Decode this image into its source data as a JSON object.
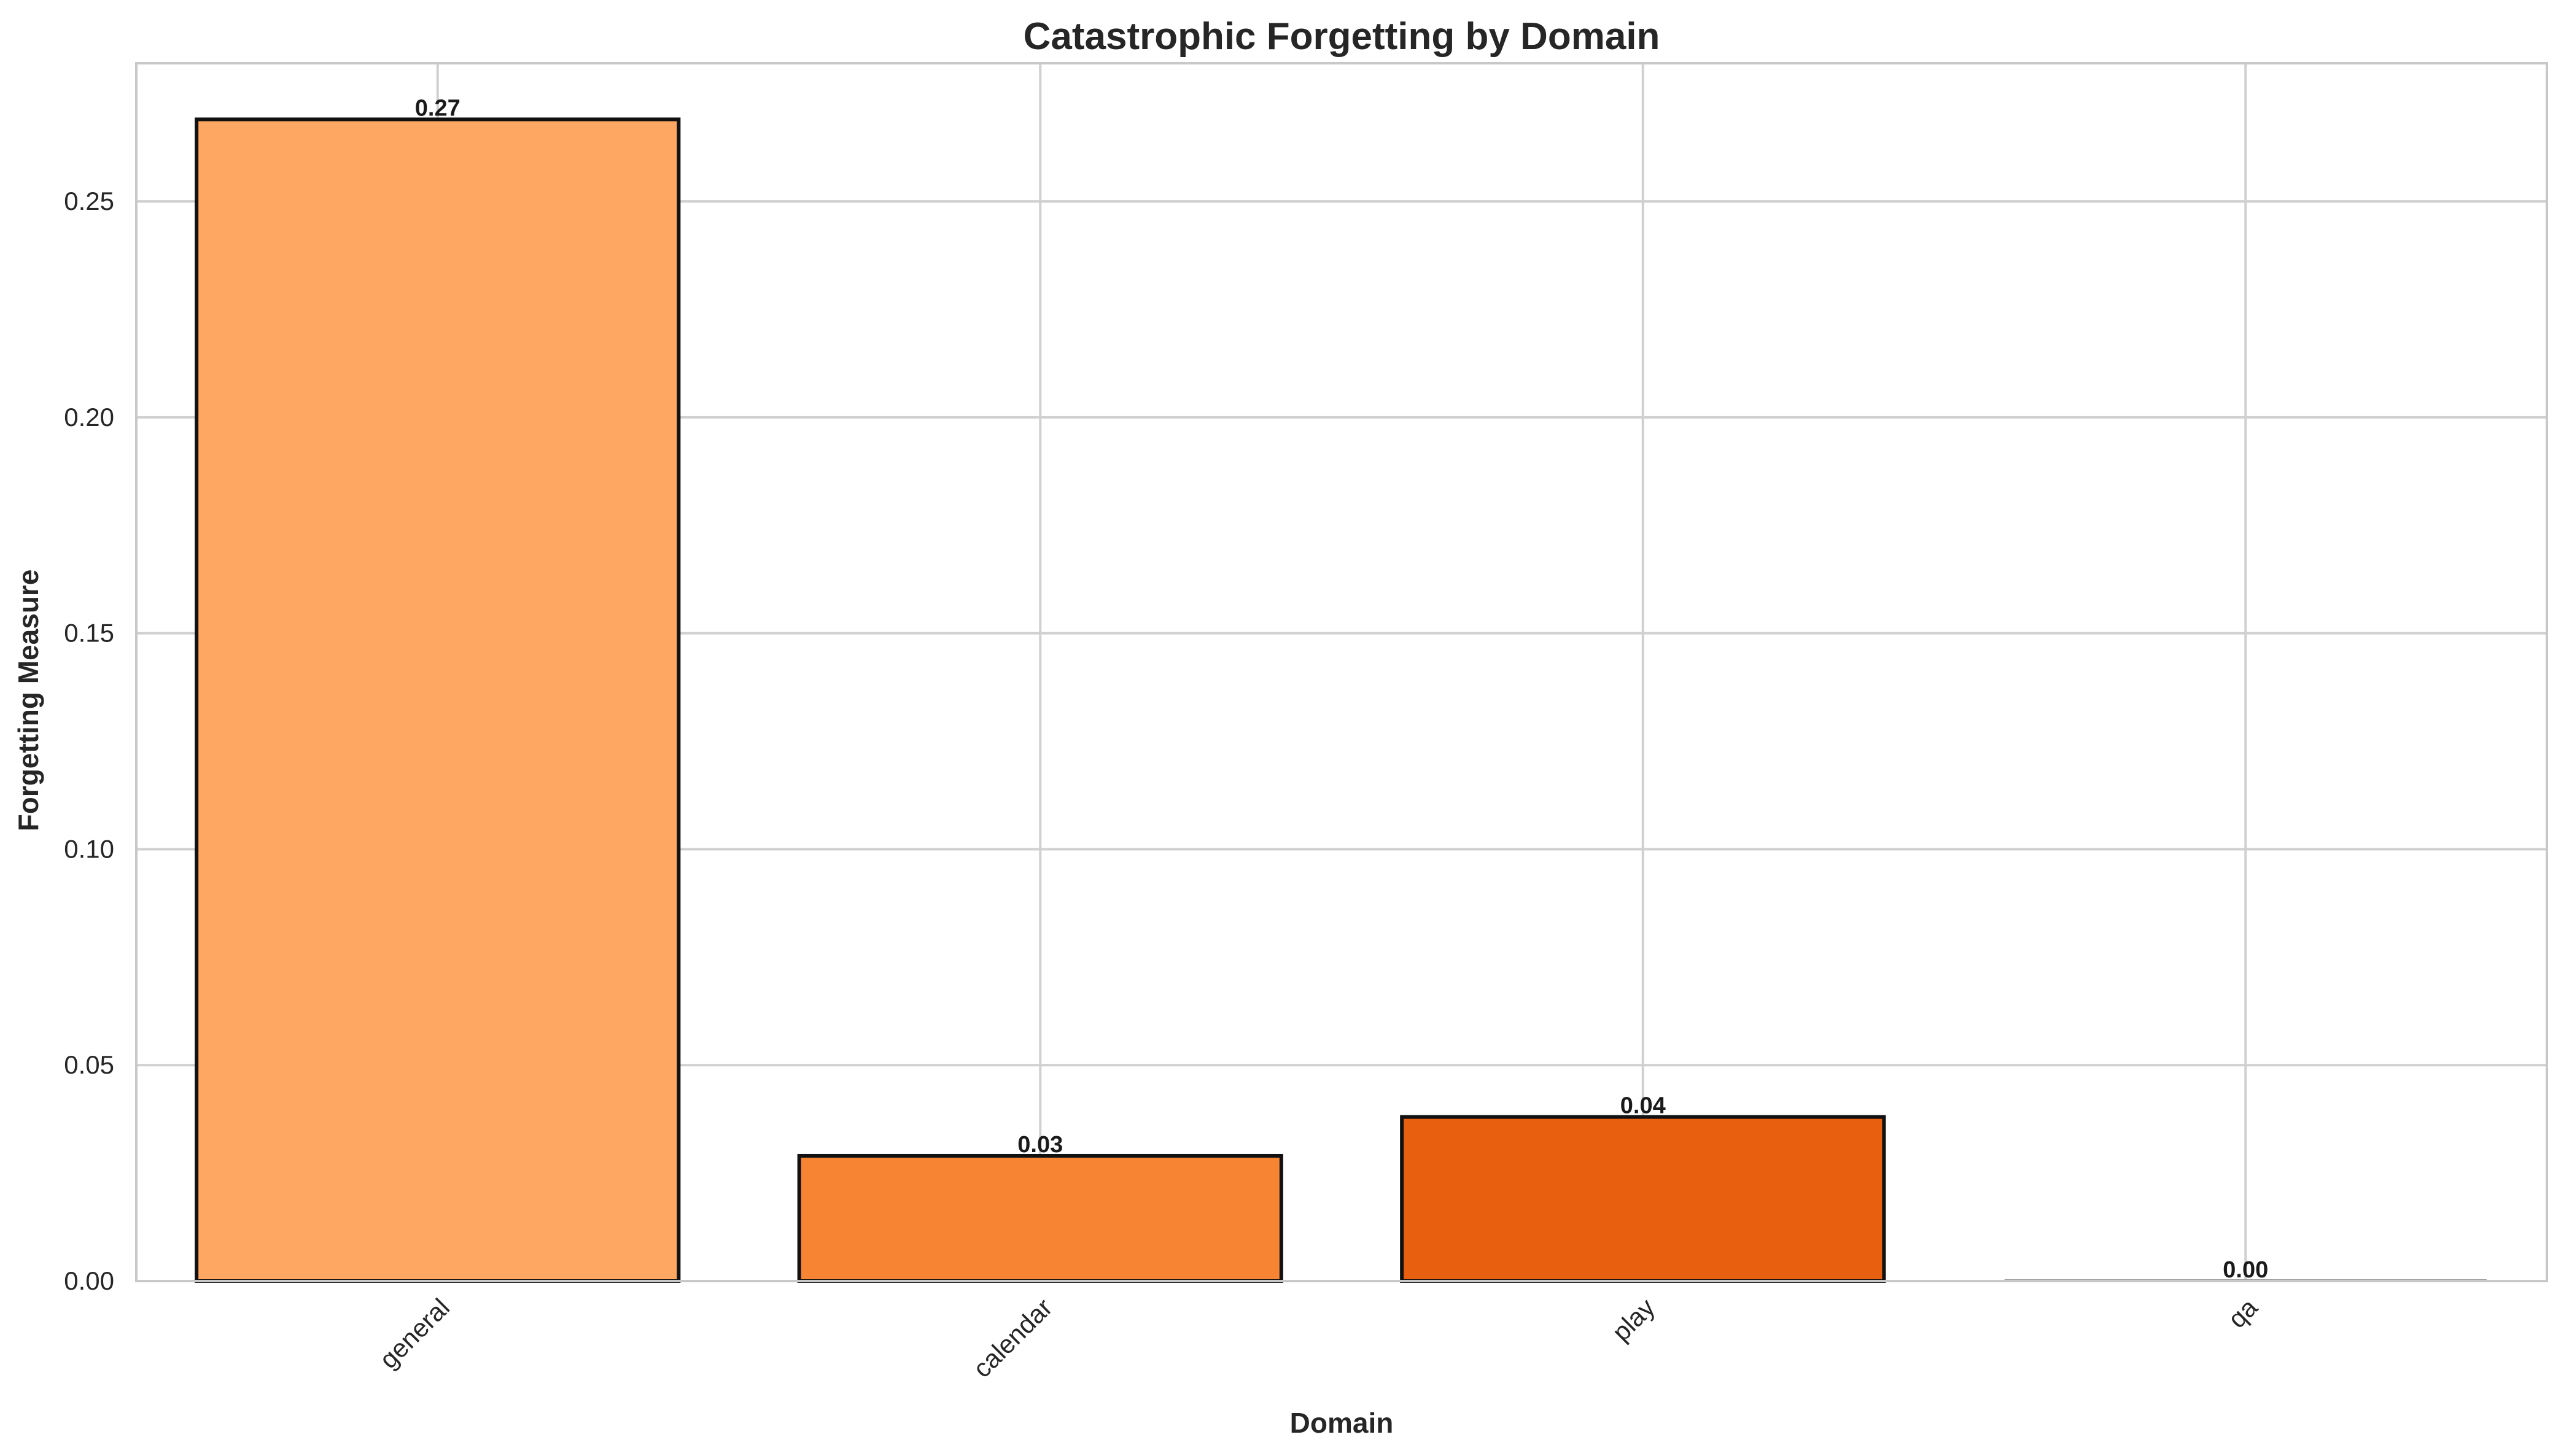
{
  "chart_data": {
    "type": "bar",
    "title": "Catastrophic Forgetting by Domain",
    "xlabel": "Domain",
    "ylabel": "Forgetting Measure",
    "categories": [
      "general",
      "calendar",
      "play",
      "qa"
    ],
    "values": [
      0.269,
      0.029,
      0.038,
      0.0
    ],
    "data_labels": [
      "0.27",
      "0.03",
      "0.04",
      "0.00"
    ],
    "ylim": [
      0,
      0.282
    ],
    "yticks": [
      0.0,
      0.05,
      0.1,
      0.15,
      0.2,
      0.25
    ],
    "ytick_labels": [
      "0.00",
      "0.05",
      "0.10",
      "0.15",
      "0.20",
      "0.25"
    ],
    "colors": [
      "#fda762",
      "#f68432",
      "#e85f0f",
      "#a0a0a0"
    ],
    "grid": true,
    "legend": "none"
  }
}
